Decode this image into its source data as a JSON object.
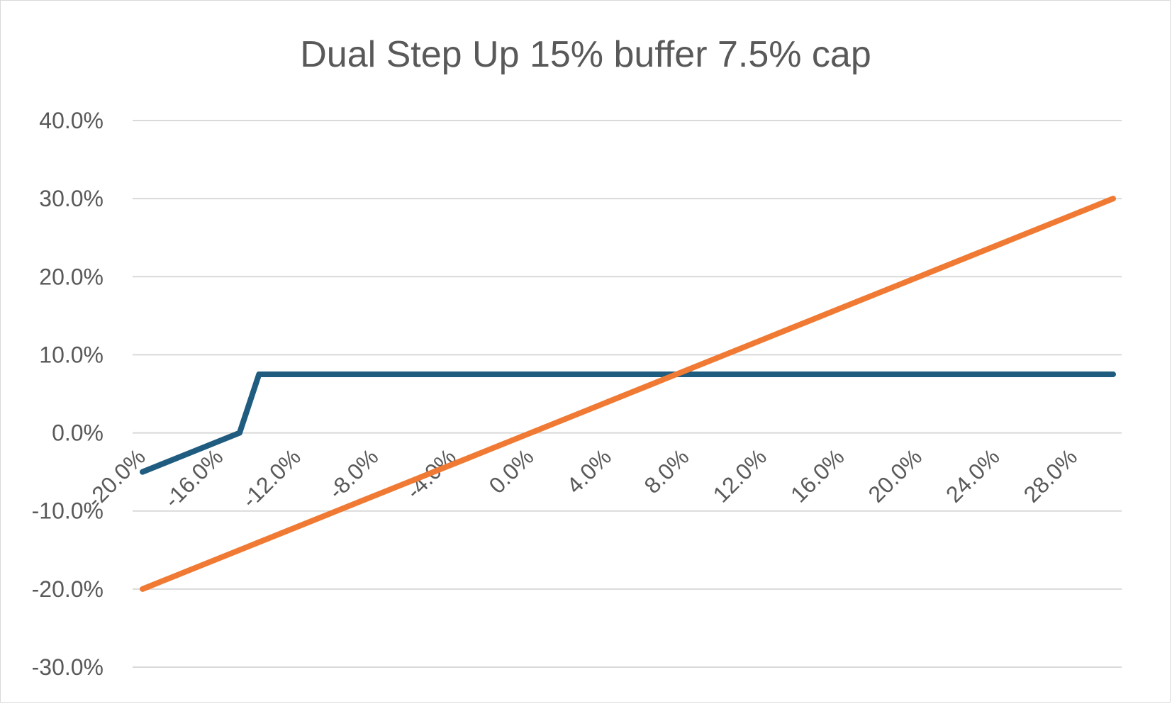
{
  "chart_data": {
    "type": "line",
    "title": "Dual Step Up 15% buffer 7.5% cap",
    "xlabel": "",
    "ylabel": "",
    "x": [
      -20,
      -19,
      -18,
      -17,
      -16,
      -15,
      -14,
      -13,
      -12,
      -11,
      -10,
      -9,
      -8,
      -7,
      -6,
      -5,
      -4,
      -3,
      -2,
      -1,
      0,
      1,
      2,
      3,
      4,
      5,
      6,
      7,
      8,
      9,
      10,
      11,
      12,
      13,
      14,
      15,
      16,
      17,
      18,
      19,
      20,
      21,
      22,
      23,
      24,
      25,
      26,
      27,
      28,
      29,
      30
    ],
    "x_tick_labels": [
      "-20.0%",
      "-16.0%",
      "-12.0%",
      "-8.0%",
      "-4.0%",
      "0.0%",
      "4.0%",
      "8.0%",
      "12.0%",
      "16.0%",
      "20.0%",
      "24.0%",
      "28.0%"
    ],
    "x_tick_values": [
      -20,
      -16,
      -12,
      -8,
      -4,
      0,
      4,
      8,
      12,
      16,
      20,
      24,
      28
    ],
    "xlim": [
      -20,
      30
    ],
    "y_tick_labels": [
      "40.0%",
      "30.0%",
      "20.0%",
      "10.0%",
      "0.0%",
      "-10.0%",
      "-20.0%",
      "-30.0%"
    ],
    "y_tick_values": [
      40,
      30,
      20,
      10,
      0,
      -10,
      -20,
      -30
    ],
    "ylim": [
      -30,
      40
    ],
    "grid": true,
    "legend": "none",
    "series": [
      {
        "color": "#1f5c7f",
        "values": [
          -5,
          -4,
          -3,
          -2,
          -1,
          0,
          7.5,
          7.5,
          7.5,
          7.5,
          7.5,
          7.5,
          7.5,
          7.5,
          7.5,
          7.5,
          7.5,
          7.5,
          7.5,
          7.5,
          7.5,
          7.5,
          7.5,
          7.5,
          7.5,
          7.5,
          7.5,
          7.5,
          7.5,
          7.5,
          7.5,
          7.5,
          7.5,
          7.5,
          7.5,
          7.5,
          7.5,
          7.5,
          7.5,
          7.5,
          7.5,
          7.5,
          7.5,
          7.5,
          7.5,
          7.5,
          7.5,
          7.5,
          7.5,
          7.5,
          7.5
        ]
      },
      {
        "color": "#f07a33",
        "values": [
          -20,
          -19,
          -18,
          -17,
          -16,
          -15,
          -14,
          -13,
          -12,
          -11,
          -10,
          -9,
          -8,
          -7,
          -6,
          -5,
          -4,
          -3,
          -2,
          -1,
          0,
          1,
          2,
          3,
          4,
          5,
          6,
          7,
          8,
          9,
          10,
          11,
          12,
          13,
          14,
          15,
          16,
          17,
          18,
          19,
          20,
          21,
          22,
          23,
          24,
          25,
          26,
          27,
          28,
          29,
          30
        ]
      }
    ]
  }
}
